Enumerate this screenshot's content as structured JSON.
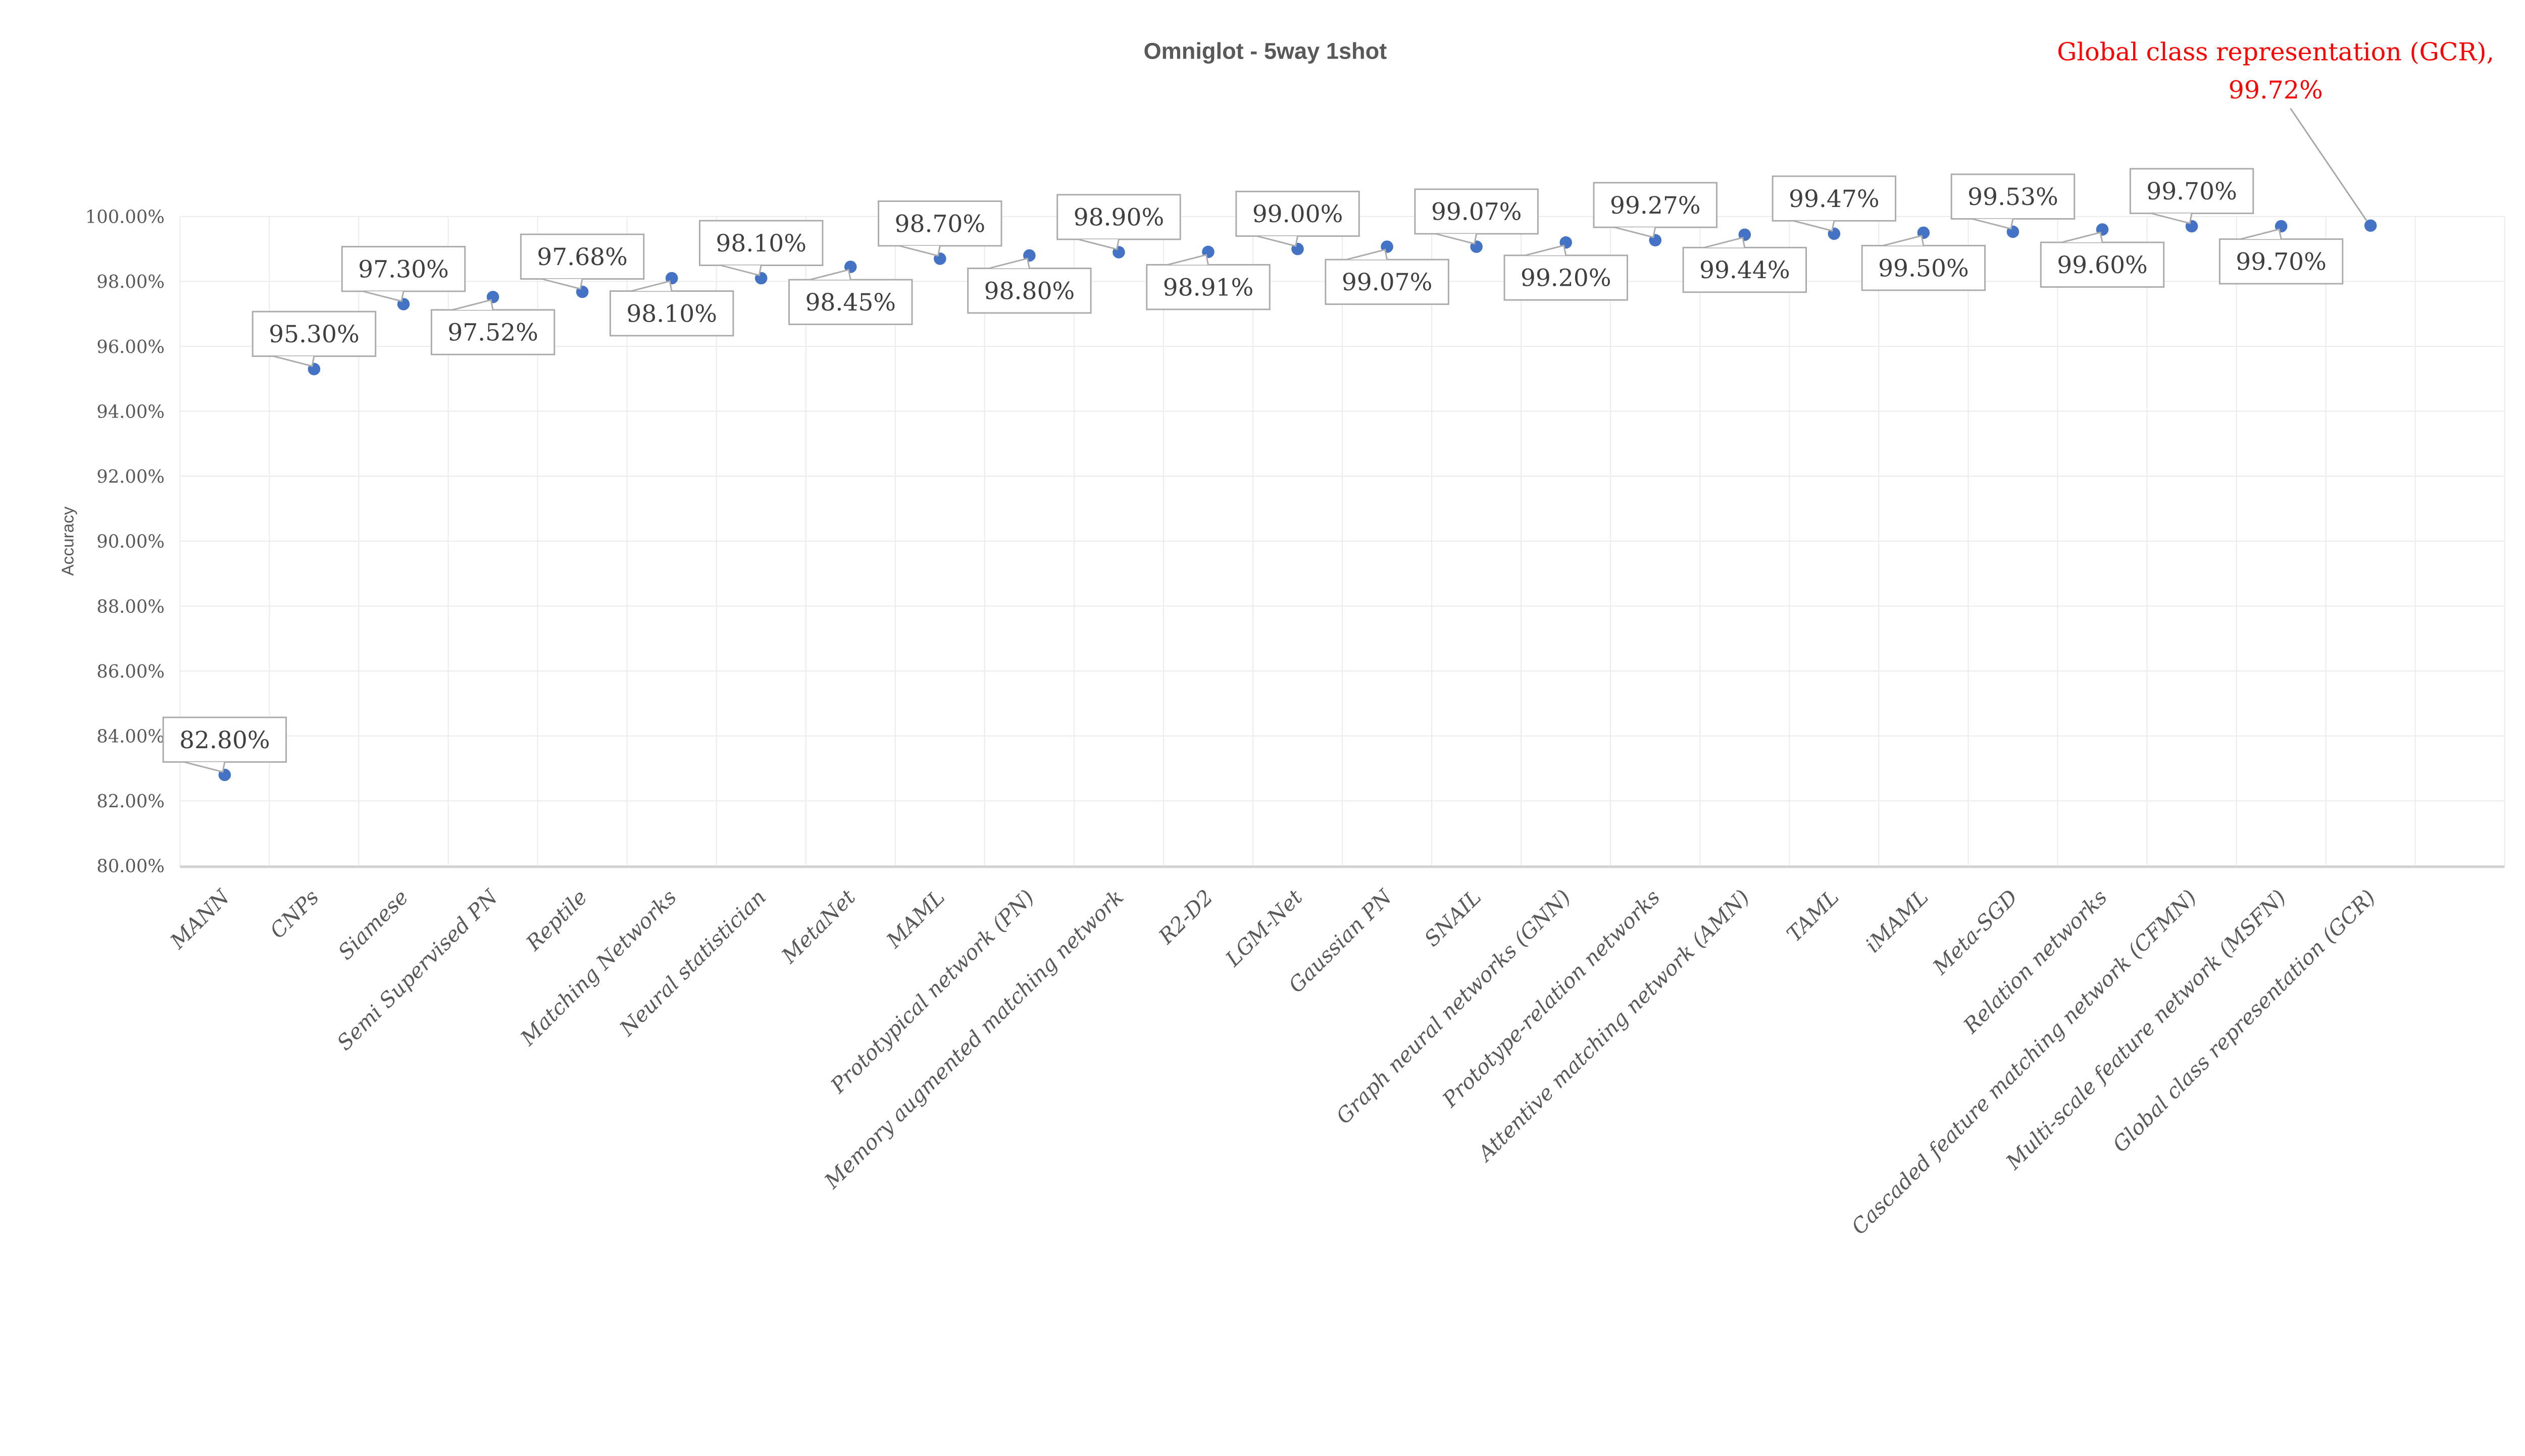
{
  "page": {
    "background": "#FFFFFF"
  },
  "chart_data": {
    "type": "scatter",
    "title": "Omniglot - 5way 1shot",
    "ylabel": "Accuracy",
    "xlabel": "",
    "grid": true,
    "legend": "none",
    "y_axis": {
      "min": 80,
      "max": 100,
      "ticks": [
        {
          "value": 80,
          "label": "80.00%"
        },
        {
          "value": 82,
          "label": "82.00%"
        },
        {
          "value": 84,
          "label": "84.00%"
        },
        {
          "value": 86,
          "label": "86.00%"
        },
        {
          "value": 88,
          "label": "88.00%"
        },
        {
          "value": 90,
          "label": "90.00%"
        },
        {
          "value": 92,
          "label": "92.00%"
        },
        {
          "value": 94,
          "label": "94.00%"
        },
        {
          "value": 96,
          "label": "96.00%"
        },
        {
          "value": 98,
          "label": "98.00%"
        },
        {
          "value": 100,
          "label": "100.00%"
        }
      ]
    },
    "points": [
      {
        "category": "MANN",
        "value": 82.8,
        "label": "82.80%",
        "label_position": "above"
      },
      {
        "category": "CNPs",
        "value": 95.3,
        "label": "95.30%",
        "label_position": "above"
      },
      {
        "category": "Siamese",
        "value": 97.3,
        "label": "97.30%",
        "label_position": "above"
      },
      {
        "category": "Semi Supervised PN",
        "value": 97.52,
        "label": "97.52%",
        "label_position": "below"
      },
      {
        "category": "Reptile",
        "value": 97.68,
        "label": "97.68%",
        "label_position": "above"
      },
      {
        "category": "Matching Networks",
        "value": 98.1,
        "label": "98.10%",
        "label_position": "below"
      },
      {
        "category": "Neural statistician",
        "value": 98.1,
        "label": "98.10%",
        "label_position": "above"
      },
      {
        "category": "MetaNet",
        "value": 98.45,
        "label": "98.45%",
        "label_position": "below"
      },
      {
        "category": "MAML",
        "value": 98.7,
        "label": "98.70%",
        "label_position": "above"
      },
      {
        "category": "Prototypical network (PN)",
        "value": 98.8,
        "label": "98.80%",
        "label_position": "below"
      },
      {
        "category": "Memory augmented matching network",
        "value": 98.9,
        "label": "98.90%",
        "label_position": "above"
      },
      {
        "category": "R2-D2",
        "value": 98.91,
        "label": "98.91%",
        "label_position": "below"
      },
      {
        "category": "LGM-Net",
        "value": 99.0,
        "label": "99.00%",
        "label_position": "above"
      },
      {
        "category": "Gaussian PN",
        "value": 99.07,
        "label": "99.07%",
        "label_position": "below"
      },
      {
        "category": "SNAIL",
        "value": 99.07,
        "label": "99.07%",
        "label_position": "above"
      },
      {
        "category": "Graph neural networks (GNN)",
        "value": 99.2,
        "label": "99.20%",
        "label_position": "below"
      },
      {
        "category": "Prototype-relation networks",
        "value": 99.27,
        "label": "99.27%",
        "label_position": "above"
      },
      {
        "category": "Attentive matching network (AMN)",
        "value": 99.44,
        "label": "99.44%",
        "label_position": "below"
      },
      {
        "category": "TAML",
        "value": 99.47,
        "label": "99.47%",
        "label_position": "above"
      },
      {
        "category": "iMAML",
        "value": 99.5,
        "label": "99.50%",
        "label_position": "below"
      },
      {
        "category": "Meta-SGD",
        "value": 99.53,
        "label": "99.53%",
        "label_position": "above"
      },
      {
        "category": "Relation networks",
        "value": 99.6,
        "label": "99.60%",
        "label_position": "below"
      },
      {
        "category": "Cascaded feature matching network (CFMN)",
        "value": 99.7,
        "label": "99.70%",
        "label_position": "above"
      },
      {
        "category": "Multi-scale feature network (MSFN)",
        "value": 99.7,
        "label": "99.70%",
        "label_position": "below"
      },
      {
        "category": "Global class representation (GCR)",
        "value": 99.72,
        "label": "99.72%",
        "label_position": "annotation"
      }
    ],
    "annotation": {
      "line1": "Global class representation (GCR),",
      "line2": "99.72%",
      "color": "#FF0000",
      "target_category": "Global class representation (GCR)"
    },
    "colors": {
      "point": "#4472C4",
      "title_text": "#595959",
      "axis_text": "#595959",
      "label_text": "#3F3F3F",
      "gridline": "#EBEBEB",
      "axis_line": "#D2D2D2",
      "callout_border": "#ABABAB",
      "callout_fill": "#FFFFFF",
      "leader_line": "#A6A6A6"
    }
  }
}
